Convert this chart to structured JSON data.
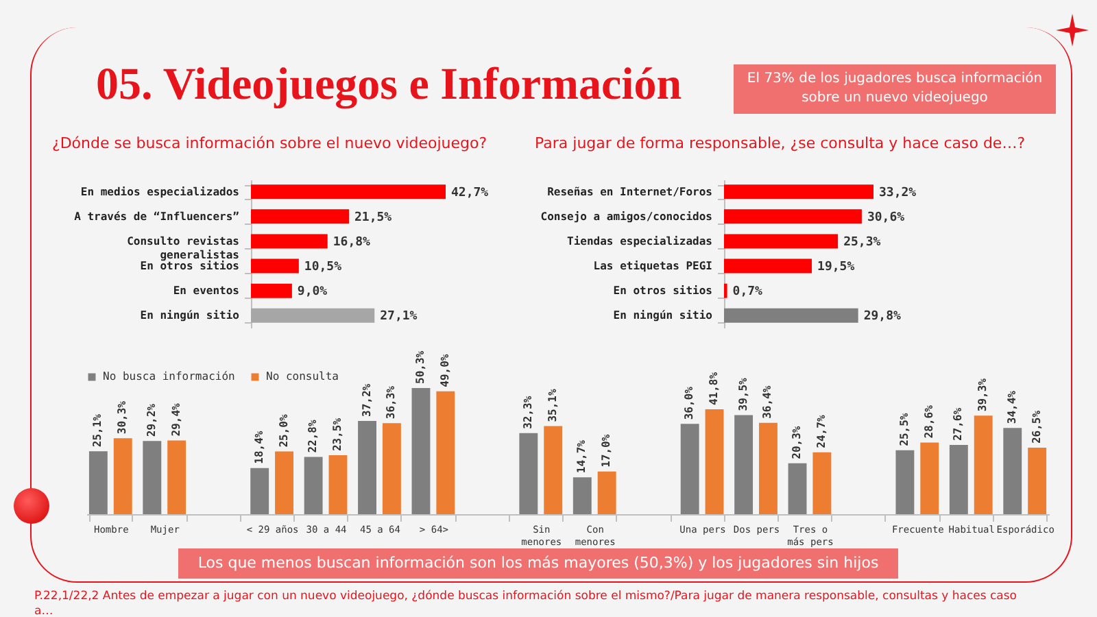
{
  "chart_data": [
    {
      "type": "bar",
      "orientation": "horizontal",
      "title": "05. Videojuegos e Información",
      "subtitle": "¿Dónde se busca información sobre el nuevo videojuego?",
      "annotations": [
        "El 73% de los jugadores busca información sobre un nuevo videojuego"
      ],
      "categories": [
        "En medios especializados",
        "A través de “Influencers”",
        "Consulto revistas generalistas",
        "En otros sitios",
        "En eventos",
        "En ningún sitio"
      ],
      "values": [
        42.7,
        21.5,
        16.8,
        10.5,
        9.0,
        27.1
      ],
      "value_labels": [
        "42,7%",
        "21,5%",
        "16,8%",
        "10,5%",
        "9,0%",
        "27,1%"
      ],
      "colors": [
        "#ff0000",
        "#ff0000",
        "#ff0000",
        "#ff0000",
        "#ff0000",
        "#a6a6a6"
      ],
      "tick_labels": "y"
    },
    {
      "type": "bar",
      "orientation": "horizontal",
      "title": "Para jugar de forma responsable, ¿se consulta y hace caso de…?",
      "categories": [
        "Reseñas en Internet/Foros",
        "Consejo a amigos/conocidos",
        "Tiendas especializadas",
        "Las etiquetas PEGI",
        "En otros sitios",
        "En ningún sitio"
      ],
      "values": [
        33.2,
        30.6,
        25.3,
        19.5,
        0.7,
        29.8
      ],
      "value_labels": [
        "33,2%",
        "30,6%",
        "25,3%",
        "19,5%",
        "0,7%",
        "29,8%"
      ],
      "colors": [
        "#ff0000",
        "#ff0000",
        "#ff0000",
        "#ff0000",
        "#ff0000",
        "#7f7f7f"
      ],
      "tick_labels": "y"
    },
    {
      "type": "bar",
      "annotations": [
        "Los que menos buscan información son los más mayores (50,3%) y los jugadores sin hijos",
        "P.22,1/22,2 Antes de empezar a jugar con un nuevo videojuego, ¿dónde buscas información sobre el mismo?/Para jugar de manera responsable, consultas y haces caso a…"
      ],
      "categories": [
        "Hombre",
        "Mujer",
        null,
        "< 29 años",
        "30 a 44",
        "45 a 64",
        "> 64>",
        null,
        "Sin menores",
        "Con menores",
        null,
        "Una pers",
        "Dos pers",
        "Tres o más pers",
        null,
        "Frecuente",
        "Habitual",
        "Esporádico"
      ],
      "series": [
        {
          "name": "No busca información",
          "color": "#7f7f7f",
          "values": [
            25.1,
            29.2,
            null,
            18.4,
            22.8,
            37.2,
            50.3,
            null,
            32.3,
            14.7,
            null,
            36.0,
            39.5,
            20.3,
            null,
            25.5,
            27.6,
            34.4
          ],
          "value_labels": [
            "25,1%",
            "29,2%",
            null,
            "18,4%",
            "22,8%",
            "37,2%",
            "50,3%",
            null,
            "32,3%",
            "14,7%",
            null,
            "36,0%",
            "39,5%",
            "20,3%",
            null,
            "25,5%",
            "27,6%",
            "34,4%"
          ]
        },
        {
          "name": "No consulta",
          "color": "#ed7d31",
          "values": [
            30.3,
            29.4,
            null,
            25.0,
            23.5,
            36.3,
            49.0,
            null,
            35.1,
            17.0,
            null,
            41.8,
            36.4,
            24.7,
            null,
            28.6,
            39.3,
            26.5
          ],
          "value_labels": [
            "30,3%",
            "29,4%",
            null,
            "25,0%",
            "23,5%",
            "36,3%",
            "49,0%",
            null,
            "35,1%",
            "17,0%",
            null,
            "41,8%",
            "36,4%",
            "24,7%",
            null,
            "28,6%",
            "39,3%",
            "26,5%"
          ]
        }
      ],
      "tick_labels": "x",
      "legend": "top"
    }
  ]
}
